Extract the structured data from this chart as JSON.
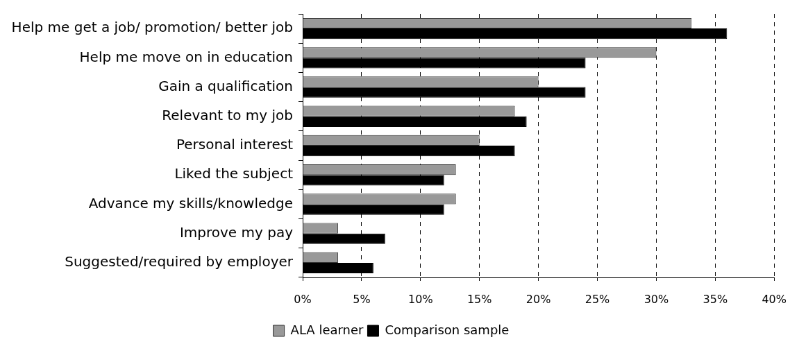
{
  "chart_data": {
    "type": "bar",
    "orientation": "horizontal",
    "categories": [
      "Help me get a job/ promotion/ better job",
      "Help me move on in education",
      "Gain a qualification",
      "Relevant to my job",
      "Personal interest",
      "Liked the subject",
      "Advance my skills/knowledge",
      "Improve my pay",
      "Suggested/required by employer"
    ],
    "series": [
      {
        "name": "ALA learner",
        "color": "#999999",
        "values": [
          33,
          30,
          20,
          18,
          15,
          13,
          13,
          3,
          3
        ]
      },
      {
        "name": "Comparison sample",
        "color": "#000000",
        "values": [
          36,
          24,
          24,
          19,
          18,
          12,
          12,
          7,
          6
        ]
      }
    ],
    "xlim": [
      0,
      40
    ],
    "xticks": [
      {
        "value": 0,
        "label": "0%"
      },
      {
        "value": 5,
        "label": "5%"
      },
      {
        "value": 10,
        "label": "10%"
      },
      {
        "value": 15,
        "label": "15%"
      },
      {
        "value": 20,
        "label": "20%"
      },
      {
        "value": 25,
        "label": "25%"
      },
      {
        "value": 30,
        "label": "30%"
      },
      {
        "value": 35,
        "label": "35%"
      },
      {
        "value": 40,
        "label": "40%"
      }
    ],
    "grid": "x",
    "legend": "bottom"
  }
}
